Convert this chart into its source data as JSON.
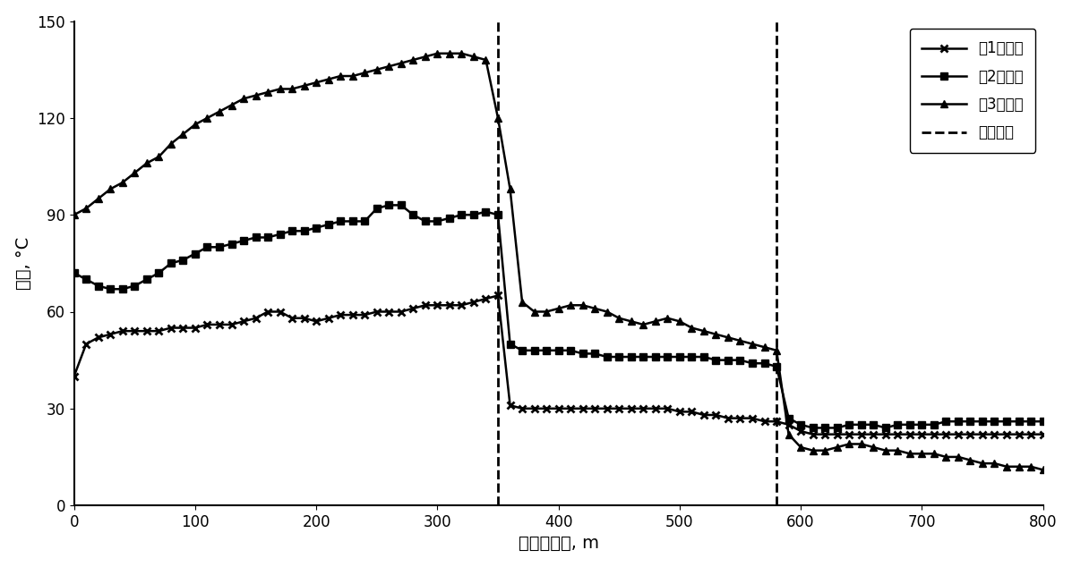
{
  "title": "",
  "xlabel": "水平段长度, m",
  "ylabel": "温度, °C",
  "xlim": [
    0,
    800
  ],
  "ylim": [
    0,
    150
  ],
  "xticks": [
    0,
    100,
    200,
    300,
    400,
    500,
    600,
    700,
    800
  ],
  "yticks": [
    0,
    30,
    60,
    90,
    120,
    150
  ],
  "vlines": [
    350,
    580
  ],
  "background_color": "#ffffff",
  "series1_label": "第1周期末",
  "series2_label": "第2周期末",
  "series3_label": "第3周期末",
  "dashed_label": "分段位置",
  "line_color": "#000000",
  "series1_x": [
    0,
    10,
    20,
    30,
    40,
    50,
    60,
    70,
    80,
    90,
    100,
    110,
    120,
    130,
    140,
    150,
    160,
    170,
    180,
    190,
    200,
    210,
    220,
    230,
    240,
    250,
    260,
    270,
    280,
    290,
    300,
    310,
    320,
    330,
    340,
    350,
    360,
    370,
    380,
    390,
    400,
    410,
    420,
    430,
    440,
    450,
    460,
    470,
    480,
    490,
    500,
    510,
    520,
    530,
    540,
    550,
    560,
    570,
    580,
    590,
    600,
    610,
    620,
    630,
    640,
    650,
    660,
    670,
    680,
    690,
    700,
    710,
    720,
    730,
    740,
    750,
    760,
    770,
    780,
    790,
    800
  ],
  "series1_y": [
    40,
    50,
    52,
    53,
    54,
    54,
    54,
    54,
    55,
    55,
    55,
    56,
    56,
    56,
    57,
    58,
    60,
    60,
    58,
    58,
    57,
    58,
    59,
    59,
    59,
    60,
    60,
    60,
    61,
    62,
    62,
    62,
    62,
    63,
    64,
    65,
    31,
    30,
    30,
    30,
    30,
    30,
    30,
    30,
    30,
    30,
    30,
    30,
    30,
    30,
    29,
    29,
    28,
    28,
    27,
    27,
    27,
    26,
    26,
    25,
    23,
    22,
    22,
    22,
    22,
    22,
    22,
    22,
    22,
    22,
    22,
    22,
    22,
    22,
    22,
    22,
    22,
    22,
    22,
    22,
    22
  ],
  "series2_x": [
    0,
    10,
    20,
    30,
    40,
    50,
    60,
    70,
    80,
    90,
    100,
    110,
    120,
    130,
    140,
    150,
    160,
    170,
    180,
    190,
    200,
    210,
    220,
    230,
    240,
    250,
    260,
    270,
    280,
    290,
    300,
    310,
    320,
    330,
    340,
    350,
    360,
    370,
    380,
    390,
    400,
    410,
    420,
    430,
    440,
    450,
    460,
    470,
    480,
    490,
    500,
    510,
    520,
    530,
    540,
    550,
    560,
    570,
    580,
    590,
    600,
    610,
    620,
    630,
    640,
    650,
    660,
    670,
    680,
    690,
    700,
    710,
    720,
    730,
    740,
    750,
    760,
    770,
    780,
    790,
    800
  ],
  "series2_y": [
    72,
    70,
    68,
    67,
    67,
    68,
    70,
    72,
    75,
    76,
    78,
    80,
    80,
    81,
    82,
    83,
    83,
    84,
    85,
    85,
    86,
    87,
    88,
    88,
    88,
    92,
    93,
    93,
    90,
    88,
    88,
    89,
    90,
    90,
    91,
    90,
    50,
    48,
    48,
    48,
    48,
    48,
    47,
    47,
    46,
    46,
    46,
    46,
    46,
    46,
    46,
    46,
    46,
    45,
    45,
    45,
    44,
    44,
    43,
    27,
    25,
    24,
    24,
    24,
    25,
    25,
    25,
    24,
    25,
    25,
    25,
    25,
    26,
    26,
    26,
    26,
    26,
    26,
    26,
    26,
    26
  ],
  "series3_x": [
    0,
    10,
    20,
    30,
    40,
    50,
    60,
    70,
    80,
    90,
    100,
    110,
    120,
    130,
    140,
    150,
    160,
    170,
    180,
    190,
    200,
    210,
    220,
    230,
    240,
    250,
    260,
    270,
    280,
    290,
    300,
    310,
    320,
    330,
    340,
    350,
    360,
    370,
    380,
    390,
    400,
    410,
    420,
    430,
    440,
    450,
    460,
    470,
    480,
    490,
    500,
    510,
    520,
    530,
    540,
    550,
    560,
    570,
    580,
    590,
    600,
    610,
    620,
    630,
    640,
    650,
    660,
    670,
    680,
    690,
    700,
    710,
    720,
    730,
    740,
    750,
    760,
    770,
    780,
    790,
    800
  ],
  "series3_y": [
    90,
    92,
    95,
    98,
    100,
    103,
    106,
    108,
    112,
    115,
    118,
    120,
    122,
    124,
    126,
    127,
    128,
    129,
    129,
    130,
    131,
    132,
    133,
    133,
    134,
    135,
    136,
    137,
    138,
    139,
    140,
    140,
    140,
    139,
    138,
    120,
    98,
    63,
    60,
    60,
    61,
    62,
    62,
    61,
    60,
    58,
    57,
    56,
    57,
    58,
    57,
    55,
    54,
    53,
    52,
    51,
    50,
    49,
    48,
    22,
    18,
    17,
    17,
    18,
    19,
    19,
    18,
    17,
    17,
    16,
    16,
    16,
    15,
    15,
    14,
    13,
    13,
    12,
    12,
    12,
    11
  ],
  "figsize": [
    11.97,
    6.34
  ],
  "dpi": 100,
  "title_fontsize": 14,
  "label_fontsize": 14,
  "tick_fontsize": 12,
  "legend_fontsize": 12,
  "linewidth": 1.8,
  "markersize": 6
}
